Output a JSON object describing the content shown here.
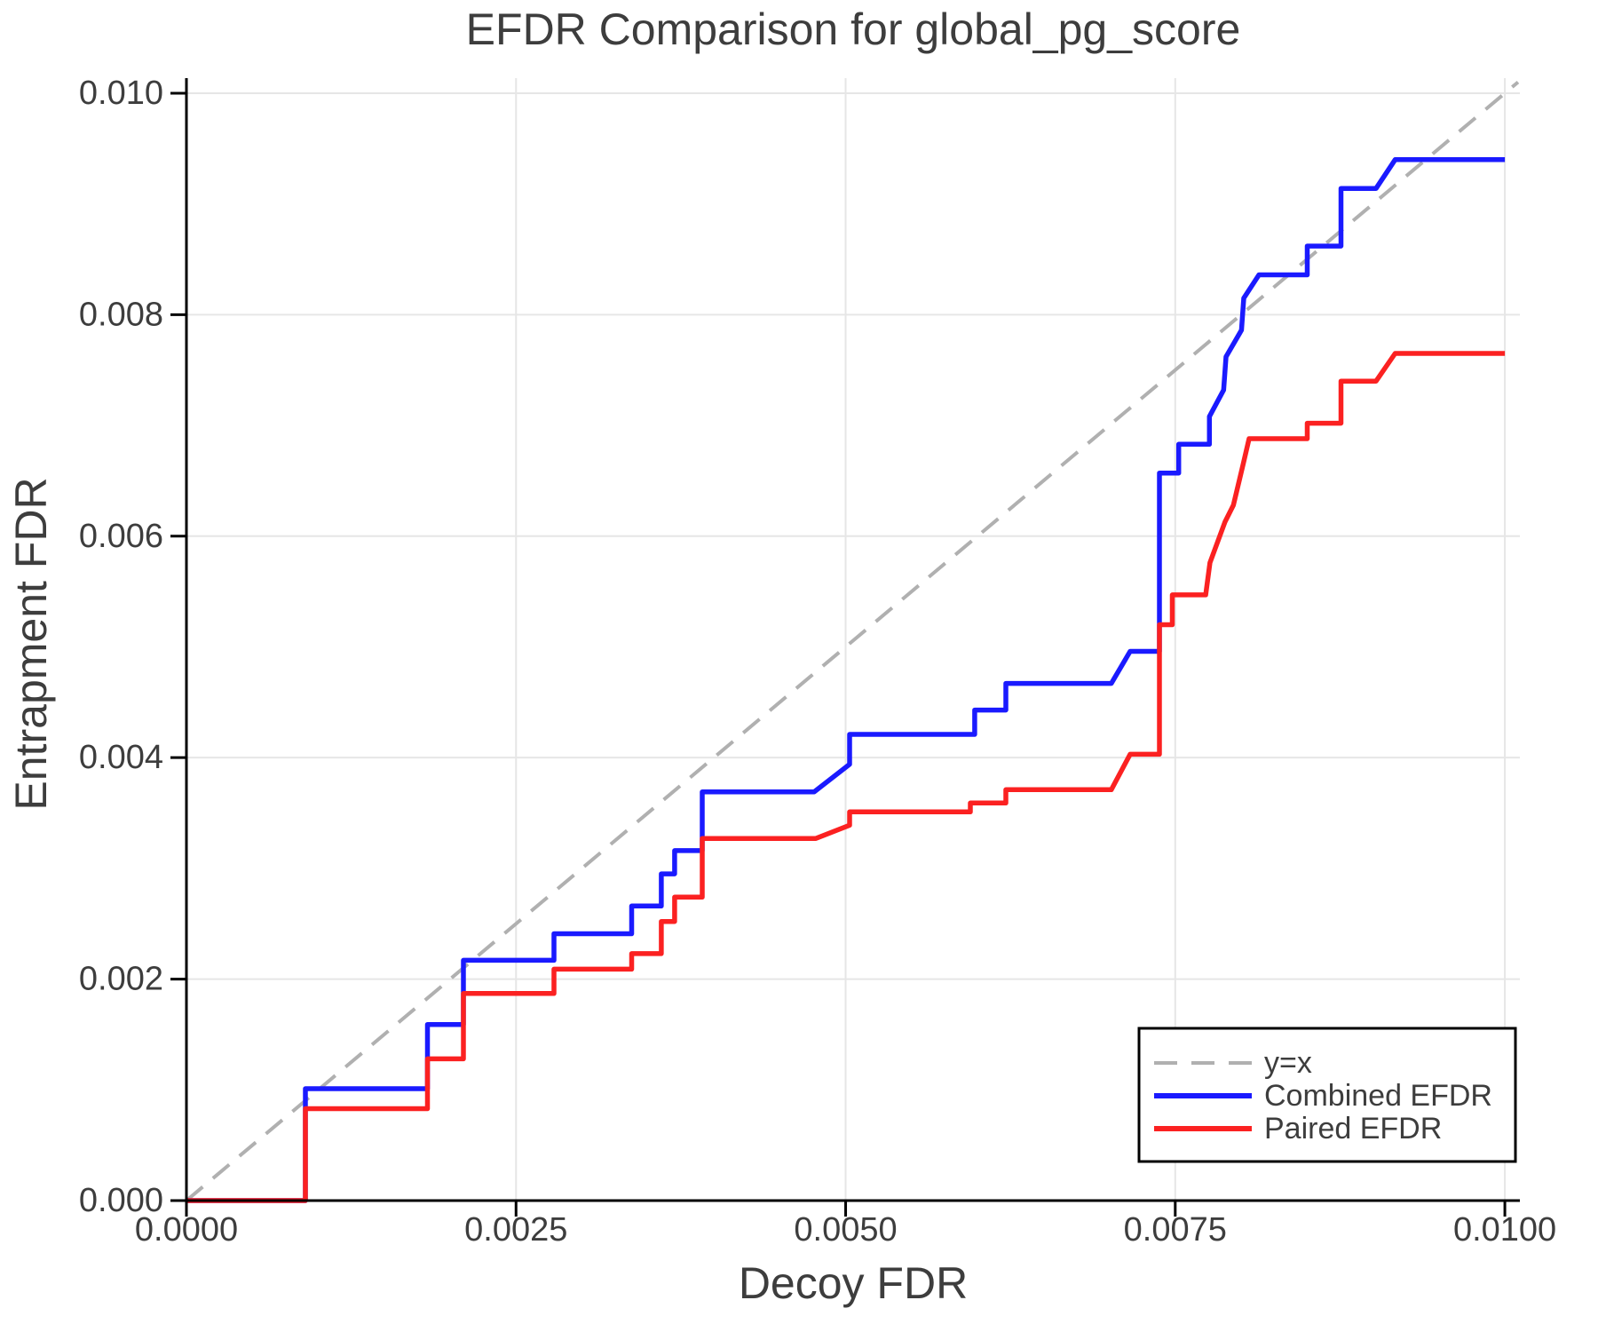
{
  "chart_data": {
    "type": "line",
    "title": "EFDR Comparison for global_pg_score",
    "xlabel": "Decoy FDR",
    "ylabel": "Entrapment FDR",
    "xlim": [
      0.0,
      0.010114
    ],
    "ylim": [
      0.0,
      0.010136
    ],
    "grid": true,
    "background_color": "#ffffff",
    "gridline_color": "#e6e6e6",
    "spine_color": "#000000",
    "text_color": "#3d3d3d",
    "x_tick_values": [
      0.0,
      0.0025,
      0.005,
      0.0075,
      0.01
    ],
    "x_tick_labels": [
      "0.0000",
      "0.0025",
      "0.0050",
      "0.0075",
      "0.0100"
    ],
    "y_tick_values": [
      0.0,
      0.002,
      0.004,
      0.006,
      0.008,
      0.01
    ],
    "y_tick_labels": [
      "0.000",
      "0.002",
      "0.004",
      "0.006",
      "0.008",
      "0.010"
    ],
    "legend_position": "bottom-right",
    "identity_line": {
      "label": "y=x",
      "color": "#b0b0b0",
      "style": "dashed",
      "from": [
        0.0,
        0.0
      ],
      "to": [
        0.0101,
        0.0101
      ]
    },
    "series": [
      {
        "name": "Combined EFDR",
        "color": "#1a1aff",
        "points": [
          [
            0.0,
            0.0
          ],
          [
            0.000902,
            0.0
          ],
          [
            0.000902,
            0.00101
          ],
          [
            0.001828,
            0.00101
          ],
          [
            0.001828,
            0.00159
          ],
          [
            0.002101,
            0.00159
          ],
          [
            0.002101,
            0.00217
          ],
          [
            0.002788,
            0.00217
          ],
          [
            0.002788,
            0.00241
          ],
          [
            0.003377,
            0.00241
          ],
          [
            0.003377,
            0.00266
          ],
          [
            0.003602,
            0.00266
          ],
          [
            0.003602,
            0.00295
          ],
          [
            0.003703,
            0.00295
          ],
          [
            0.003703,
            0.00316
          ],
          [
            0.003912,
            0.00316
          ],
          [
            0.003912,
            0.00369
          ],
          [
            0.004761,
            0.00369
          ],
          [
            0.00503,
            0.00394
          ],
          [
            0.00503,
            0.00421
          ],
          [
            0.005979,
            0.00421
          ],
          [
            0.005979,
            0.00443
          ],
          [
            0.006215,
            0.00443
          ],
          [
            0.006215,
            0.00467
          ],
          [
            0.007015,
            0.00467
          ],
          [
            0.007158,
            0.00496
          ],
          [
            0.00738,
            0.00496
          ],
          [
            0.00738,
            0.00657
          ],
          [
            0.007526,
            0.00657
          ],
          [
            0.007526,
            0.00683
          ],
          [
            0.007759,
            0.00683
          ],
          [
            0.007759,
            0.00708
          ],
          [
            0.007867,
            0.00732
          ],
          [
            0.007885,
            0.00762
          ],
          [
            0.008002,
            0.00786
          ],
          [
            0.00802,
            0.00815
          ],
          [
            0.008135,
            0.00836
          ],
          [
            0.008501,
            0.00836
          ],
          [
            0.008501,
            0.00862
          ],
          [
            0.008757,
            0.00862
          ],
          [
            0.008757,
            0.00914
          ],
          [
            0.009023,
            0.00914
          ],
          [
            0.009168,
            0.0094
          ],
          [
            0.01,
            0.0094
          ]
        ]
      },
      {
        "name": "Paired EFDR",
        "color": "#fb2121",
        "points": [
          [
            0.0,
            0.0
          ],
          [
            0.000902,
            0.0
          ],
          [
            0.000902,
            0.00083
          ],
          [
            0.001828,
            0.00083
          ],
          [
            0.001828,
            0.00128
          ],
          [
            0.002101,
            0.00128
          ],
          [
            0.002101,
            0.00187
          ],
          [
            0.002788,
            0.00187
          ],
          [
            0.002788,
            0.00209
          ],
          [
            0.003377,
            0.00209
          ],
          [
            0.003377,
            0.00223
          ],
          [
            0.003602,
            0.00223
          ],
          [
            0.003602,
            0.00252
          ],
          [
            0.003703,
            0.00252
          ],
          [
            0.003703,
            0.00274
          ],
          [
            0.003912,
            0.00274
          ],
          [
            0.003912,
            0.00327
          ],
          [
            0.004774,
            0.00327
          ],
          [
            0.00503,
            0.00339
          ],
          [
            0.00503,
            0.00351
          ],
          [
            0.005946,
            0.00351
          ],
          [
            0.005946,
            0.00359
          ],
          [
            0.006215,
            0.00359
          ],
          [
            0.006215,
            0.00371
          ],
          [
            0.007015,
            0.00371
          ],
          [
            0.007158,
            0.00403
          ],
          [
            0.00738,
            0.00403
          ],
          [
            0.00738,
            0.0052
          ],
          [
            0.007478,
            0.0052
          ],
          [
            0.007478,
            0.00547
          ],
          [
            0.007731,
            0.00547
          ],
          [
            0.007763,
            0.00576
          ],
          [
            0.007878,
            0.00613
          ],
          [
            0.007941,
            0.00628
          ],
          [
            0.008013,
            0.00664
          ],
          [
            0.00806,
            0.00688
          ],
          [
            0.008501,
            0.00688
          ],
          [
            0.008501,
            0.00702
          ],
          [
            0.008757,
            0.00702
          ],
          [
            0.008757,
            0.0074
          ],
          [
            0.009023,
            0.0074
          ],
          [
            0.009168,
            0.00765
          ],
          [
            0.01,
            0.00765
          ]
        ]
      }
    ],
    "legend": {
      "entries": [
        {
          "label": "y=x"
        },
        {
          "label": "Combined EFDR"
        },
        {
          "label": "Paired EFDR"
        }
      ]
    }
  }
}
